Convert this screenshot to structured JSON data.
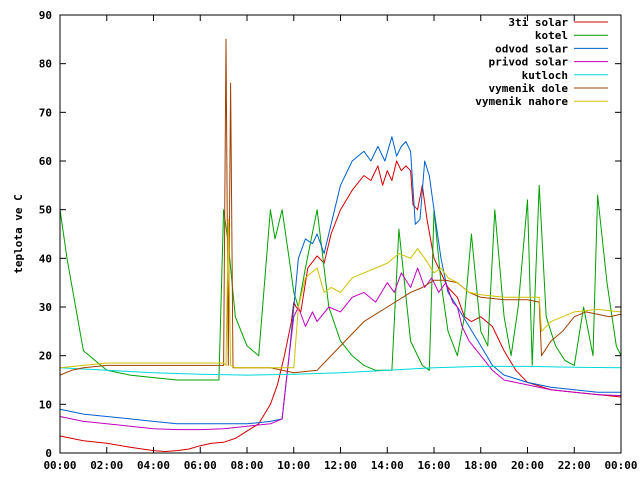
{
  "chart_data": {
    "type": "line",
    "title": "",
    "xlabel": "",
    "ylabel": "teplota ve C",
    "xlim": [
      0,
      24
    ],
    "ylim": [
      0,
      90
    ],
    "grid": false,
    "legend_position": "top-right",
    "x_tick_labels": [
      "00:00",
      "02:00",
      "04:00",
      "06:00",
      "08:00",
      "10:00",
      "12:00",
      "14:00",
      "16:00",
      "18:00",
      "20:00",
      "22:00",
      "00:00"
    ],
    "y_tick_labels": [
      "0",
      "10",
      "20",
      "30",
      "40",
      "50",
      "60",
      "70",
      "80",
      "90"
    ],
    "x_tick_values": [
      0,
      2,
      4,
      6,
      8,
      10,
      12,
      14,
      16,
      18,
      20,
      22,
      24
    ],
    "y_tick_values": [
      0,
      10,
      20,
      30,
      40,
      50,
      60,
      70,
      80,
      90
    ],
    "series": [
      {
        "name": "3ti solar",
        "color": "#d40000",
        "x": [
          0,
          1,
          2,
          3,
          4,
          4.5,
          5,
          5.5,
          6,
          6.5,
          7,
          7.5,
          8,
          8.5,
          9,
          9.3,
          9.6,
          9.9,
          10,
          10.1,
          10.3,
          10.6,
          11,
          11.3,
          11.6,
          12,
          12.5,
          13,
          13.3,
          13.6,
          13.8,
          14,
          14.2,
          14.4,
          14.6,
          14.8,
          15,
          15.1,
          15.3,
          15.5,
          15.7,
          16,
          16.3,
          16.6,
          17,
          17.3,
          17.6,
          18,
          18.5,
          19,
          19.5,
          20,
          21,
          22,
          23,
          24
        ],
        "values": [
          3.5,
          2.5,
          2,
          1.2,
          0.5,
          0.3,
          0.5,
          0.8,
          1.5,
          2,
          2.2,
          3,
          4.5,
          6,
          10,
          14,
          20,
          27,
          31,
          30,
          29,
          38,
          40.5,
          39,
          45,
          50,
          54,
          57,
          56,
          59,
          55,
          58,
          56,
          60,
          58,
          59,
          58,
          51,
          50,
          55,
          48,
          40,
          37,
          34,
          32,
          28,
          27,
          28,
          26,
          21,
          17,
          14.5,
          13,
          12.5,
          12,
          11.5
        ]
      },
      {
        "name": "kotel",
        "color": "#00a000",
        "x": [
          0,
          0.3,
          1,
          2,
          3,
          4,
          5,
          6,
          6.8,
          7,
          7.2,
          7.5,
          8,
          8.5,
          9,
          9.2,
          9.5,
          9.8,
          10,
          10.2,
          10.5,
          11,
          11.5,
          12,
          12.5,
          13,
          13.5,
          14,
          14.2,
          14.5,
          15,
          15.5,
          15.8,
          16,
          16.3,
          16.6,
          17,
          17.3,
          17.6,
          18,
          18.3,
          18.6,
          19,
          19.3,
          19.6,
          20,
          20.2,
          20.5,
          20.8,
          21.2,
          21.6,
          22,
          22.4,
          22.8,
          23,
          23.4,
          23.8,
          24
        ],
        "values": [
          50,
          40,
          21,
          17,
          16,
          15.5,
          15,
          15,
          15,
          50,
          43,
          28,
          22,
          20,
          50,
          44,
          50,
          40,
          33,
          30,
          38,
          50,
          30,
          23,
          20,
          18,
          17,
          17,
          17,
          46,
          23,
          18,
          17,
          50,
          35,
          25,
          20,
          28,
          45,
          25,
          22,
          50,
          28,
          20,
          30,
          52,
          18,
          55,
          28,
          22,
          19,
          18,
          30,
          20,
          53,
          35,
          22,
          20
        ]
      },
      {
        "name": "odvod solar",
        "color": "#0060d0",
        "x": [
          0,
          1,
          2,
          3,
          4,
          5,
          6,
          7,
          8,
          9,
          9.5,
          9.8,
          10,
          10.2,
          10.5,
          10.8,
          11,
          11.3,
          11.6,
          12,
          12.5,
          13,
          13.3,
          13.6,
          13.9,
          14.2,
          14.4,
          14.6,
          14.8,
          15,
          15.2,
          15.4,
          15.6,
          15.8,
          16,
          16.3,
          16.6,
          17,
          17.5,
          18,
          18.5,
          19,
          20,
          21,
          22,
          23,
          24
        ],
        "values": [
          9,
          8,
          7.5,
          7,
          6.5,
          6,
          6,
          6,
          6,
          6.5,
          7,
          20,
          30,
          40,
          44,
          43,
          45,
          41,
          47,
          55,
          60,
          62,
          60,
          63,
          60,
          65,
          61,
          63,
          64,
          62,
          47,
          48,
          60,
          57,
          50,
          40,
          33,
          30,
          26,
          22,
          18,
          16,
          14.5,
          13.5,
          13,
          12.5,
          12.5
        ]
      },
      {
        "name": "privod solar",
        "color": "#c000c0",
        "x": [
          0,
          1,
          2,
          3,
          4,
          5,
          6,
          7,
          8,
          9,
          9.5,
          9.8,
          10,
          10.2,
          10.5,
          10.8,
          11,
          11.5,
          12,
          12.5,
          13,
          13.5,
          14,
          14.3,
          14.6,
          15,
          15.3,
          15.6,
          15.9,
          16.2,
          16.5,
          16.8,
          17,
          17.2,
          17.5,
          18,
          18.5,
          19,
          20,
          21,
          22,
          23,
          24
        ],
        "values": [
          7.5,
          6.5,
          6,
          5.5,
          5,
          4.8,
          4.8,
          5,
          5.5,
          6,
          7,
          20,
          28,
          30,
          26,
          29,
          27,
          30,
          29,
          32,
          33,
          31,
          35,
          33,
          37,
          34,
          38,
          34,
          36,
          33,
          35,
          31,
          30,
          26,
          23,
          20,
          17,
          15,
          14,
          13,
          12.5,
          12,
          11.8
        ]
      },
      {
        "name": "kutloch",
        "color": "#00d8d8",
        "x": [
          0,
          2,
          4,
          6,
          8,
          10,
          12,
          14,
          16,
          18,
          20,
          22,
          24
        ],
        "values": [
          17.5,
          17,
          16.5,
          16.2,
          16,
          16.2,
          16.5,
          17,
          17.5,
          17.8,
          17.8,
          17.6,
          17.5
        ]
      },
      {
        "name": "vymenik dole",
        "color": "#a04000",
        "x": [
          0,
          0.5,
          1,
          2,
          3,
          4,
          5,
          6,
          7,
          7.1,
          7.2,
          7.3,
          7.4,
          7.5,
          8,
          9,
          10,
          11,
          12,
          13,
          14,
          15,
          15.5,
          16,
          16.5,
          17,
          17.5,
          18,
          19,
          20,
          20.5,
          20.6,
          21,
          21.5,
          22,
          22.5,
          23,
          23.5,
          24
        ],
        "values": [
          16,
          17,
          17.5,
          18,
          18,
          18,
          18,
          18,
          18,
          85,
          18,
          76,
          17.5,
          17.5,
          17.5,
          17.5,
          16.5,
          17,
          22,
          27,
          30,
          33,
          34,
          35.5,
          35.5,
          35,
          33,
          32,
          31.5,
          31.5,
          31,
          20,
          23,
          25,
          28,
          29,
          28.5,
          28,
          28.5
        ]
      },
      {
        "name": "vymenik nahore",
        "color": "#d0c000",
        "x": [
          0,
          1,
          2,
          3,
          4,
          5,
          6,
          7,
          7.1,
          7.2,
          7.3,
          7.5,
          8,
          9,
          10,
          10.2,
          10.5,
          11,
          11.3,
          11.6,
          12,
          12.5,
          13,
          13.5,
          14,
          14.5,
          15,
          15.3,
          15.6,
          16,
          16.3,
          16.6,
          17,
          17.5,
          18,
          19,
          20,
          20.5,
          20.6,
          21,
          22,
          23,
          24
        ],
        "values": [
          17.5,
          18,
          18.5,
          18.5,
          18.5,
          18.5,
          18.5,
          18.5,
          18,
          48,
          18,
          17.5,
          17.5,
          17.5,
          17.5,
          30,
          36,
          38,
          33,
          34,
          33,
          36,
          37,
          38,
          39,
          41,
          40,
          42,
          40,
          37,
          38,
          36,
          35,
          33,
          32.5,
          32,
          32,
          32,
          25,
          27,
          29,
          29.5,
          29
        ]
      }
    ]
  }
}
